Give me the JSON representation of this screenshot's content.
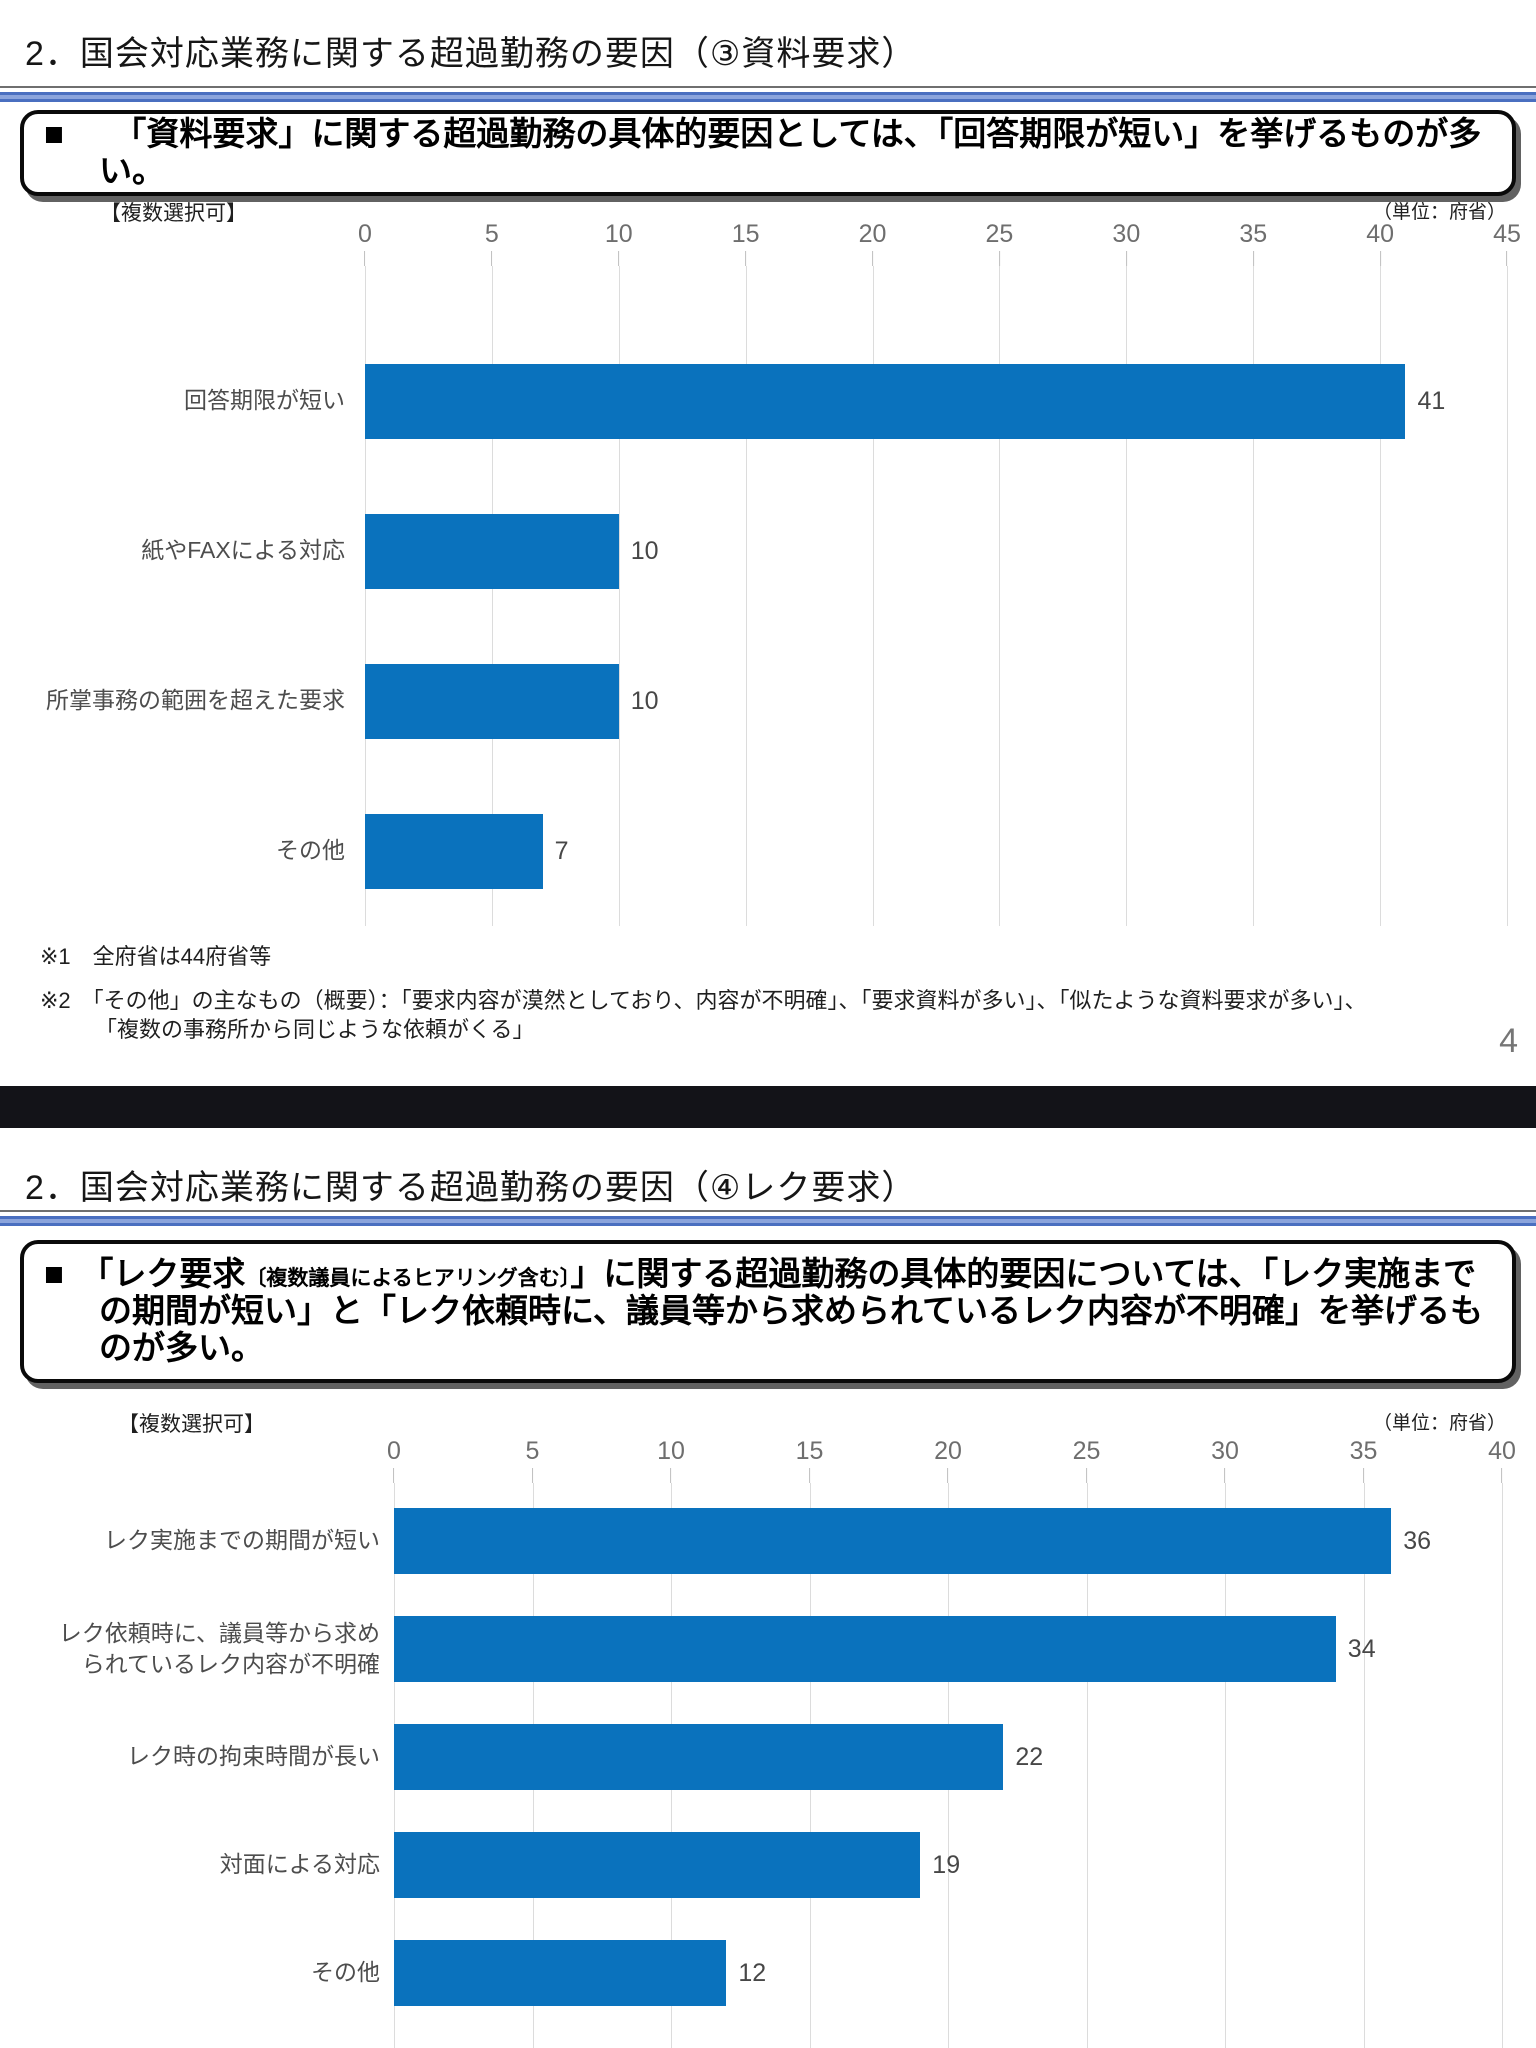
{
  "document": {
    "page_number": "4"
  },
  "slide1": {
    "title": "2．国会対応業務に関する超過勤務の要因（③資料要求）",
    "callout": "■　　「資料要求」に関する超過勤務の具体的要因としては、「回答期限が短い」を挙げるものが多い。",
    "multi_select_label": "【複数選択可】",
    "unit_label": "（単位：府省）",
    "note1": "※1　全府省は44府省等",
    "note2": "※2　「その他」の主なもの（概要）：「要求内容が漠然としており、内容が不明確」、「要求資料が多い」、「似たような資料要求が多い」、\n「複数の事務所から同じような依頼がくる」"
  },
  "slide2": {
    "title": "2．国会対応業務に関する超過勤務の要因（④レク要求）",
    "callout_lead": "■　「レク要求",
    "callout_small": "〔複数議員によるヒアリング含む〕",
    "callout_rest": "」に関する超過勤務の具体的要因については、「レク実施までの期間が短い」と「レク依頼時に、議員等から求められているレク内容が不明確」を挙げるものが多い。",
    "multi_select_label": "【複数選択可】",
    "unit_label": "（単位：府省）"
  },
  "chart_data": [
    {
      "type": "bar",
      "orientation": "horizontal",
      "title": "資料要求に関する超過勤務の具体的要因",
      "categories": [
        "回答期限が短い",
        "紙やFAXによる対応",
        "所掌事務の範囲を超えた要求",
        "その他"
      ],
      "values": [
        41,
        10,
        10,
        7
      ],
      "xlim": [
        0,
        45
      ],
      "tick_step": 5,
      "unit": "府省",
      "bar_color": "#0a72bd",
      "grid": true,
      "value_labels": true,
      "legend": "none"
    },
    {
      "type": "bar",
      "orientation": "horizontal",
      "title": "レク要求に関する超過勤務の具体的要因",
      "categories": [
        "レク実施までの期間が短い",
        "レク依頼時に、議員等から求め\nられているレク内容が不明確",
        "レク時の拘束時間が長い",
        "対面による対応",
        "その他"
      ],
      "values": [
        36,
        34,
        22,
        19,
        12
      ],
      "xlim": [
        0,
        40
      ],
      "tick_step": 5,
      "unit": "府省",
      "bar_color": "#0a72bd",
      "grid": true,
      "value_labels": true,
      "legend": "none"
    }
  ]
}
